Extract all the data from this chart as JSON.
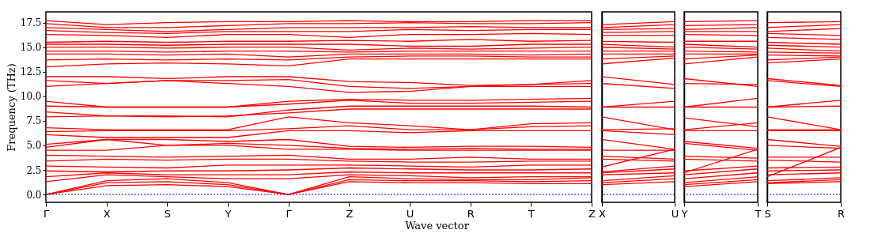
{
  "chart_data": [
    {
      "type": "line",
      "xlabel": "Wave vector",
      "ylabel": "Frequency (THz)",
      "categories": [
        "Γ",
        "X",
        "S",
        "Y",
        "Γ",
        "Z",
        "U",
        "R",
        "T",
        "Z"
      ],
      "ylim": [
        -0.8,
        18.6
      ],
      "yticks": [
        {
          "value": 0,
          "label": "0.0"
        },
        {
          "value": 2.5,
          "label": "2.5"
        },
        {
          "value": 5,
          "label": "5.0"
        },
        {
          "value": 7.5,
          "label": "7.5"
        },
        {
          "value": 10,
          "label": "10.0"
        },
        {
          "value": 12.5,
          "label": "12.5"
        },
        {
          "value": 15,
          "label": "15.0"
        },
        {
          "value": 17.5,
          "label": "17.5"
        }
      ],
      "ref_lines": [
        {
          "axis": "y",
          "value": 0,
          "color": "#0000ff",
          "line_style": "dotted"
        }
      ],
      "series": [
        {
          "color": "#ff0000",
          "values": [
            17.7,
            17.3,
            17.5,
            17.6,
            17.6,
            17.7,
            17.6,
            17.6,
            17.7,
            17.7
          ]
        },
        {
          "color": "#ff0000",
          "values": [
            17.4,
            17.0,
            17.0,
            17.2,
            17.4,
            17.4,
            17.5,
            17.4,
            17.4,
            17.5
          ]
        },
        {
          "color": "#ff0000",
          "values": [
            17.0,
            16.8,
            16.6,
            16.8,
            17.0,
            17.0,
            17.0,
            17.1,
            17.0,
            17.0
          ]
        },
        {
          "color": "#ff0000",
          "values": [
            16.7,
            16.5,
            16.4,
            16.6,
            16.6,
            16.6,
            16.8,
            16.7,
            16.8,
            16.8
          ]
        },
        {
          "color": "#ff0000",
          "values": [
            16.3,
            16.2,
            16.0,
            16.3,
            16.3,
            16.0,
            16.3,
            16.3,
            16.4,
            16.3
          ]
        },
        {
          "color": "#ff0000",
          "values": [
            15.5,
            15.6,
            15.5,
            15.6,
            15.6,
            15.7,
            15.6,
            15.8,
            15.6,
            15.7
          ]
        },
        {
          "color": "#ff0000",
          "values": [
            15.3,
            15.3,
            15.2,
            15.3,
            15.3,
            15.3,
            15.1,
            15.1,
            15.3,
            15.3
          ]
        },
        {
          "color": "#ff0000",
          "values": [
            15.0,
            15.0,
            14.9,
            15.0,
            15.0,
            14.7,
            14.9,
            14.8,
            14.9,
            15.0
          ]
        },
        {
          "color": "#ff0000",
          "values": [
            14.6,
            14.6,
            14.5,
            14.6,
            14.6,
            14.5,
            14.6,
            14.6,
            14.6,
            14.6
          ]
        },
        {
          "color": "#ff0000",
          "values": [
            14.3,
            14.3,
            14.2,
            14.3,
            14.0,
            14.3,
            14.3,
            14.3,
            14.2,
            14.3
          ]
        },
        {
          "color": "#ff0000",
          "values": [
            13.7,
            13.8,
            13.7,
            13.8,
            13.7,
            14.0,
            14.1,
            14.1,
            14.0,
            14.0
          ]
        },
        {
          "color": "#ff0000",
          "values": [
            13.0,
            13.3,
            13.4,
            13.3,
            13.1,
            13.8,
            13.8,
            13.8,
            13.8,
            13.8
          ]
        },
        {
          "color": "#ff0000",
          "values": [
            12.0,
            12.0,
            11.8,
            12.0,
            12.0,
            11.5,
            11.4,
            11.1,
            11.2,
            11.6
          ]
        },
        {
          "color": "#ff0000",
          "values": [
            11.6,
            11.3,
            11.6,
            11.6,
            11.7,
            11.0,
            10.8,
            11.0,
            11.2,
            11.3
          ]
        },
        {
          "color": "#ff0000",
          "values": [
            11.0,
            11.3,
            11.6,
            11.3,
            11.0,
            10.4,
            10.5,
            11.0,
            11.0,
            11.0
          ]
        },
        {
          "color": "#ff0000",
          "values": [
            9.5,
            8.9,
            8.9,
            8.9,
            9.5,
            9.7,
            9.6,
            9.6,
            9.7,
            9.8
          ]
        },
        {
          "color": "#ff0000",
          "values": [
            9.0,
            8.9,
            8.9,
            8.9,
            9.2,
            9.6,
            9.3,
            9.3,
            9.4,
            9.5
          ]
        },
        {
          "color": "#ff0000",
          "values": [
            8.4,
            8.0,
            8.0,
            7.9,
            8.6,
            9.0,
            9.0,
            9.0,
            9.0,
            8.9
          ]
        },
        {
          "color": "#ff0000",
          "values": [
            7.9,
            8.0,
            7.9,
            8.0,
            8.3,
            8.7,
            8.7,
            8.7,
            8.7,
            8.7
          ]
        },
        {
          "color": "#ff0000",
          "values": [
            6.8,
            6.6,
            6.6,
            6.6,
            7.9,
            7.3,
            7.0,
            6.6,
            7.2,
            7.3
          ]
        },
        {
          "color": "#ff0000",
          "values": [
            6.4,
            6.5,
            6.5,
            6.5,
            6.7,
            7.0,
            6.6,
            6.6,
            6.9,
            7.0
          ]
        },
        {
          "color": "#ff0000",
          "values": [
            6.1,
            5.8,
            5.8,
            5.8,
            6.5,
            6.5,
            6.3,
            6.5,
            6.5,
            6.5
          ]
        },
        {
          "color": "#ff0000",
          "values": [
            5.1,
            5.6,
            5.6,
            5.4,
            5.6,
            4.9,
            4.8,
            4.9,
            4.9,
            4.8
          ]
        },
        {
          "color": "#ff0000",
          "values": [
            4.8,
            5.6,
            5.0,
            5.2,
            5.0,
            4.7,
            4.6,
            4.7,
            4.6,
            4.6
          ]
        },
        {
          "color": "#ff0000",
          "values": [
            4.5,
            4.5,
            5.0,
            5.0,
            4.6,
            4.6,
            4.5,
            4.5,
            4.5,
            4.5
          ]
        },
        {
          "color": "#ff0000",
          "values": [
            4.0,
            3.9,
            3.8,
            3.9,
            4.0,
            3.6,
            3.6,
            3.8,
            3.6,
            3.6
          ]
        },
        {
          "color": "#ff0000",
          "values": [
            3.4,
            3.6,
            3.5,
            3.6,
            3.6,
            3.4,
            3.3,
            3.3,
            3.4,
            3.4
          ]
        },
        {
          "color": "#ff0000",
          "values": [
            2.9,
            2.8,
            2.7,
            3.0,
            3.0,
            3.0,
            2.9,
            2.8,
            3.0,
            3.0
          ]
        },
        {
          "color": "#ff0000",
          "values": [
            2.4,
            2.3,
            2.4,
            2.4,
            2.5,
            2.7,
            2.6,
            2.5,
            2.5,
            2.6
          ]
        },
        {
          "color": "#ff0000",
          "values": [
            1.8,
            2.2,
            2.0,
            2.0,
            2.0,
            2.3,
            2.2,
            2.2,
            2.2,
            2.2
          ]
        },
        {
          "color": "#ff0000",
          "values": [
            1.3,
            2.0,
            1.8,
            1.6,
            1.6,
            2.0,
            1.9,
            1.7,
            1.8,
            1.8
          ]
        },
        {
          "color": "#ff0000",
          "values": [
            0,
            1.4,
            1.6,
            1.2,
            0,
            1.8,
            1.6,
            1.5,
            1.5,
            1.7
          ]
        },
        {
          "color": "#ff0000",
          "values": [
            0,
            1.2,
            1.3,
            1.0,
            0,
            1.5,
            1.4,
            1.4,
            1.3,
            1.4
          ]
        },
        {
          "color": "#ff0000",
          "values": [
            0,
            0.9,
            1.0,
            0.8,
            0,
            1.3,
            1.2,
            1.2,
            1.1,
            1.1
          ]
        }
      ]
    },
    {
      "type": "line",
      "categories": [
        "X",
        "U"
      ],
      "ylim": [
        -0.8,
        18.6
      ],
      "tick_labels": "x",
      "ref_lines": [
        {
          "axis": "y",
          "value": 0,
          "color": "#0000ff",
          "line_style": "dotted"
        }
      ],
      "series": [
        {
          "color": "#ff0000",
          "values": [
            17.3,
            17.6
          ]
        },
        {
          "color": "#ff0000",
          "values": [
            17.0,
            17.3
          ]
        },
        {
          "color": "#ff0000",
          "values": [
            16.8,
            16.9
          ]
        },
        {
          "color": "#ff0000",
          "values": [
            16.5,
            16.6
          ]
        },
        {
          "color": "#ff0000",
          "values": [
            16.2,
            16.2
          ]
        },
        {
          "color": "#ff0000",
          "values": [
            15.6,
            15.5
          ]
        },
        {
          "color": "#ff0000",
          "values": [
            15.3,
            15.0
          ]
        },
        {
          "color": "#ff0000",
          "values": [
            15.0,
            14.8
          ]
        },
        {
          "color": "#ff0000",
          "values": [
            14.6,
            14.6
          ]
        },
        {
          "color": "#ff0000",
          "values": [
            14.3,
            14.3
          ]
        },
        {
          "color": "#ff0000",
          "values": [
            13.8,
            14.1
          ]
        },
        {
          "color": "#ff0000",
          "values": [
            13.3,
            13.9
          ]
        },
        {
          "color": "#ff0000",
          "values": [
            12.0,
            11.2
          ]
        },
        {
          "color": "#ff0000",
          "values": [
            11.3,
            10.8
          ]
        },
        {
          "color": "#ff0000",
          "values": [
            8.9,
            9.5
          ]
        },
        {
          "color": "#ff0000",
          "values": [
            8.9,
            8.9
          ]
        },
        {
          "color": "#ff0000",
          "values": [
            7.9,
            6.6
          ]
        },
        {
          "color": "#ff0000",
          "values": [
            6.6,
            6.7
          ]
        },
        {
          "color": "#ff0000",
          "values": [
            6.5,
            6.1
          ]
        },
        {
          "color": "#ff0000",
          "values": [
            5.6,
            4.6
          ]
        },
        {
          "color": "#ff0000",
          "values": [
            4.5,
            4.5
          ]
        },
        {
          "color": "#ff0000",
          "values": [
            3.9,
            3.6
          ]
        },
        {
          "color": "#ff0000",
          "values": [
            3.6,
            3.4
          ]
        },
        {
          "color": "#ff0000",
          "values": [
            2.8,
            4.6
          ]
        },
        {
          "color": "#ff0000",
          "values": [
            2.3,
            2.9
          ]
        },
        {
          "color": "#ff0000",
          "values": [
            2.2,
            2.6
          ]
        },
        {
          "color": "#ff0000",
          "values": [
            2.0,
            2.2
          ]
        },
        {
          "color": "#ff0000",
          "values": [
            1.4,
            1.9
          ]
        },
        {
          "color": "#ff0000",
          "values": [
            1.2,
            1.6
          ]
        },
        {
          "color": "#ff0000",
          "values": [
            1.0,
            1.3
          ]
        }
      ]
    },
    {
      "type": "line",
      "categories": [
        "Y",
        "T"
      ],
      "ylim": [
        -0.8,
        18.6
      ],
      "tick_labels": "x",
      "ref_lines": [
        {
          "axis": "y",
          "value": 0,
          "color": "#0000ff",
          "line_style": "dotted"
        }
      ],
      "series": [
        {
          "color": "#ff0000",
          "values": [
            17.6,
            17.7
          ]
        },
        {
          "color": "#ff0000",
          "values": [
            17.2,
            17.3
          ]
        },
        {
          "color": "#ff0000",
          "values": [
            16.8,
            17.0
          ]
        },
        {
          "color": "#ff0000",
          "values": [
            16.6,
            16.6
          ]
        },
        {
          "color": "#ff0000",
          "values": [
            16.3,
            16.2
          ]
        },
        {
          "color": "#ff0000",
          "values": [
            15.6,
            15.6
          ]
        },
        {
          "color": "#ff0000",
          "values": [
            15.3,
            15.0
          ]
        },
        {
          "color": "#ff0000",
          "values": [
            15.0,
            14.8
          ]
        },
        {
          "color": "#ff0000",
          "values": [
            14.6,
            14.5
          ]
        },
        {
          "color": "#ff0000",
          "values": [
            14.3,
            14.3
          ]
        },
        {
          "color": "#ff0000",
          "values": [
            13.8,
            14.2
          ]
        },
        {
          "color": "#ff0000",
          "values": [
            13.3,
            14.0
          ]
        },
        {
          "color": "#ff0000",
          "values": [
            11.8,
            11.0
          ]
        },
        {
          "color": "#ff0000",
          "values": [
            11.3,
            11.2
          ]
        },
        {
          "color": "#ff0000",
          "values": [
            8.9,
            9.8
          ]
        },
        {
          "color": "#ff0000",
          "values": [
            8.9,
            8.9
          ]
        },
        {
          "color": "#ff0000",
          "values": [
            7.8,
            6.9
          ]
        },
        {
          "color": "#ff0000",
          "values": [
            6.6,
            7.3
          ]
        },
        {
          "color": "#ff0000",
          "values": [
            6.5,
            6.5
          ]
        },
        {
          "color": "#ff0000",
          "values": [
            5.4,
            4.7
          ]
        },
        {
          "color": "#ff0000",
          "values": [
            5.2,
            4.5
          ]
        },
        {
          "color": "#ff0000",
          "values": [
            3.9,
            3.7
          ]
        },
        {
          "color": "#ff0000",
          "values": [
            3.6,
            3.4
          ]
        },
        {
          "color": "#ff0000",
          "values": [
            2.2,
            4.6
          ]
        },
        {
          "color": "#ff0000",
          "values": [
            2.4,
            2.9
          ]
        },
        {
          "color": "#ff0000",
          "values": [
            2.0,
            2.6
          ]
        },
        {
          "color": "#ff0000",
          "values": [
            1.6,
            2.2
          ]
        },
        {
          "color": "#ff0000",
          "values": [
            1.2,
            1.8
          ]
        },
        {
          "color": "#ff0000",
          "values": [
            1.0,
            1.5
          ]
        },
        {
          "color": "#ff0000",
          "values": [
            0.8,
            1.3
          ]
        }
      ]
    },
    {
      "type": "line",
      "categories": [
        "S",
        "R"
      ],
      "ylim": [
        -0.8,
        18.6
      ],
      "tick_labels": "x",
      "ref_lines": [
        {
          "axis": "y",
          "value": 0,
          "color": "#0000ff",
          "line_style": "dotted"
        }
      ],
      "series": [
        {
          "color": "#ff0000",
          "values": [
            17.5,
            17.6
          ]
        },
        {
          "color": "#ff0000",
          "values": [
            17.0,
            17.3
          ]
        },
        {
          "color": "#ff0000",
          "values": [
            16.6,
            16.9
          ]
        },
        {
          "color": "#ff0000",
          "values": [
            16.4,
            16.2
          ]
        },
        {
          "color": "#ff0000",
          "values": [
            16.0,
            15.8
          ]
        },
        {
          "color": "#ff0000",
          "values": [
            15.5,
            15.3
          ]
        },
        {
          "color": "#ff0000",
          "values": [
            15.2,
            15.0
          ]
        },
        {
          "color": "#ff0000",
          "values": [
            14.9,
            14.6
          ]
        },
        {
          "color": "#ff0000",
          "values": [
            14.5,
            14.4
          ]
        },
        {
          "color": "#ff0000",
          "values": [
            14.2,
            14.1
          ]
        },
        {
          "color": "#ff0000",
          "values": [
            13.7,
            14.0
          ]
        },
        {
          "color": "#ff0000",
          "values": [
            13.4,
            13.8
          ]
        },
        {
          "color": "#ff0000",
          "values": [
            11.8,
            11.1
          ]
        },
        {
          "color": "#ff0000",
          "values": [
            11.6,
            11.0
          ]
        },
        {
          "color": "#ff0000",
          "values": [
            8.9,
            9.6
          ]
        },
        {
          "color": "#ff0000",
          "values": [
            8.9,
            9.0
          ]
        },
        {
          "color": "#ff0000",
          "values": [
            7.9,
            6.6
          ]
        },
        {
          "color": "#ff0000",
          "values": [
            6.6,
            6.6
          ]
        },
        {
          "color": "#ff0000",
          "values": [
            6.5,
            6.5
          ]
        },
        {
          "color": "#ff0000",
          "values": [
            5.6,
            4.9
          ]
        },
        {
          "color": "#ff0000",
          "values": [
            5.0,
            4.7
          ]
        },
        {
          "color": "#ff0000",
          "values": [
            3.8,
            3.8
          ]
        },
        {
          "color": "#ff0000",
          "values": [
            3.5,
            3.3
          ]
        },
        {
          "color": "#ff0000",
          "values": [
            1.8,
            4.8
          ]
        },
        {
          "color": "#ff0000",
          "values": [
            2.7,
            2.8
          ]
        },
        {
          "color": "#ff0000",
          "values": [
            2.4,
            2.5
          ]
        },
        {
          "color": "#ff0000",
          "values": [
            2.0,
            2.2
          ]
        },
        {
          "color": "#ff0000",
          "values": [
            1.4,
            1.7
          ]
        },
        {
          "color": "#ff0000",
          "values": [
            1.2,
            1.5
          ]
        },
        {
          "color": "#ff0000",
          "values": [
            1.1,
            1.3
          ]
        }
      ]
    }
  ]
}
